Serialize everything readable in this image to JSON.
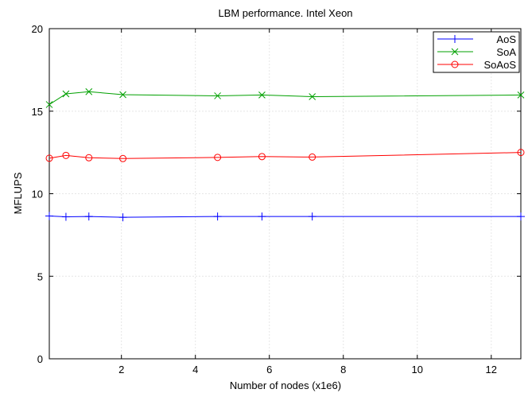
{
  "chart_data": {
    "type": "line",
    "title": "LBM performance. Intel Xeon",
    "xlabel": "Number of nodes (x1e6)",
    "ylabel": "MFLUPS",
    "xlim": [
      0.05,
      12.8
    ],
    "ylim": [
      0,
      20
    ],
    "xticks": [
      2,
      4,
      6,
      8,
      10,
      12
    ],
    "yticks": [
      0,
      5,
      10,
      15,
      20
    ],
    "grid": true,
    "legend_position": "top-right",
    "series": [
      {
        "name": "AoS",
        "color": "#0000ff",
        "marker": "plus",
        "points": [
          [
            0.05,
            8.65
          ],
          [
            0.5,
            8.6
          ],
          [
            1.12,
            8.62
          ],
          [
            2.04,
            8.57
          ],
          [
            4.6,
            8.62
          ],
          [
            5.8,
            8.62
          ],
          [
            7.16,
            8.62
          ],
          [
            12.8,
            8.62
          ]
        ]
      },
      {
        "name": "SoA",
        "color": "#00a000",
        "marker": "cross",
        "points": [
          [
            0.05,
            15.4
          ],
          [
            0.5,
            16.05
          ],
          [
            1.12,
            16.18
          ],
          [
            2.04,
            16.0
          ],
          [
            4.6,
            15.93
          ],
          [
            5.8,
            15.98
          ],
          [
            7.16,
            15.88
          ],
          [
            12.8,
            15.98
          ]
        ]
      },
      {
        "name": "SoAoS",
        "color": "#ff0000",
        "marker": "circle",
        "points": [
          [
            0.05,
            12.15
          ],
          [
            0.5,
            12.32
          ],
          [
            1.12,
            12.18
          ],
          [
            2.04,
            12.13
          ],
          [
            4.6,
            12.2
          ],
          [
            5.8,
            12.25
          ],
          [
            7.16,
            12.22
          ],
          [
            12.8,
            12.5
          ]
        ]
      }
    ]
  }
}
